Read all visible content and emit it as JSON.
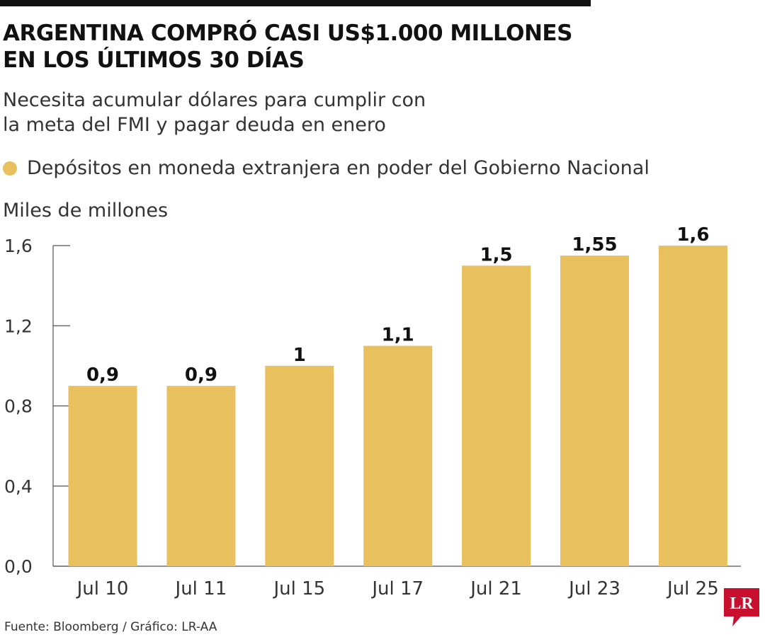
{
  "header": {
    "title_line1": "ARGENTINA COMPRÓ CASI US$1.000 MILLONES",
    "title_line2": "EN LOS ÚLTIMOS 30 DÍAS",
    "subtitle_line1": "Necesita acumular dólares para cumplir con",
    "subtitle_line2": "la meta del FMI y pagar deuda en enero"
  },
  "footer": {
    "source": "Fuente: Bloomberg / Gráfico: LR-AA",
    "logo_text": "LR"
  },
  "colors": {
    "bar": "#E8C05E",
    "axis": "#555555",
    "logo": "#C8102E",
    "topbar": "#111111"
  },
  "chart_data": {
    "type": "bar",
    "title": "ARGENTINA COMPRÓ CASI US$1.000 MILLONES EN LOS ÚLTIMOS 30 DÍAS",
    "subtitle": "Necesita acumular dólares para cumplir con la meta del FMI y pagar deuda en enero",
    "ylabel": "Miles de millones",
    "xlabel": "",
    "categories": [
      "Jul 10",
      "Jul 11",
      "Jul 15",
      "Jul 17",
      "Jul 21",
      "Jul 23",
      "Jul 25"
    ],
    "series": [
      {
        "name": "Depósitos en moneda extranjera en poder del Gobierno Nacional",
        "values": [
          0.9,
          0.9,
          1.0,
          1.1,
          1.5,
          1.55,
          1.6
        ],
        "labels": [
          "0,9",
          "0,9",
          "1",
          "1,1",
          "1,5",
          "1,55",
          "1,6"
        ]
      }
    ],
    "ylim": [
      0,
      1.6
    ],
    "yticks": [
      0,
      0.4,
      0.8,
      1.2,
      1.6
    ],
    "ytick_labels": [
      "0,0",
      "0,4",
      "0,8",
      "1,2",
      "1,6"
    ],
    "grid": false,
    "legend_position": "top-left"
  }
}
